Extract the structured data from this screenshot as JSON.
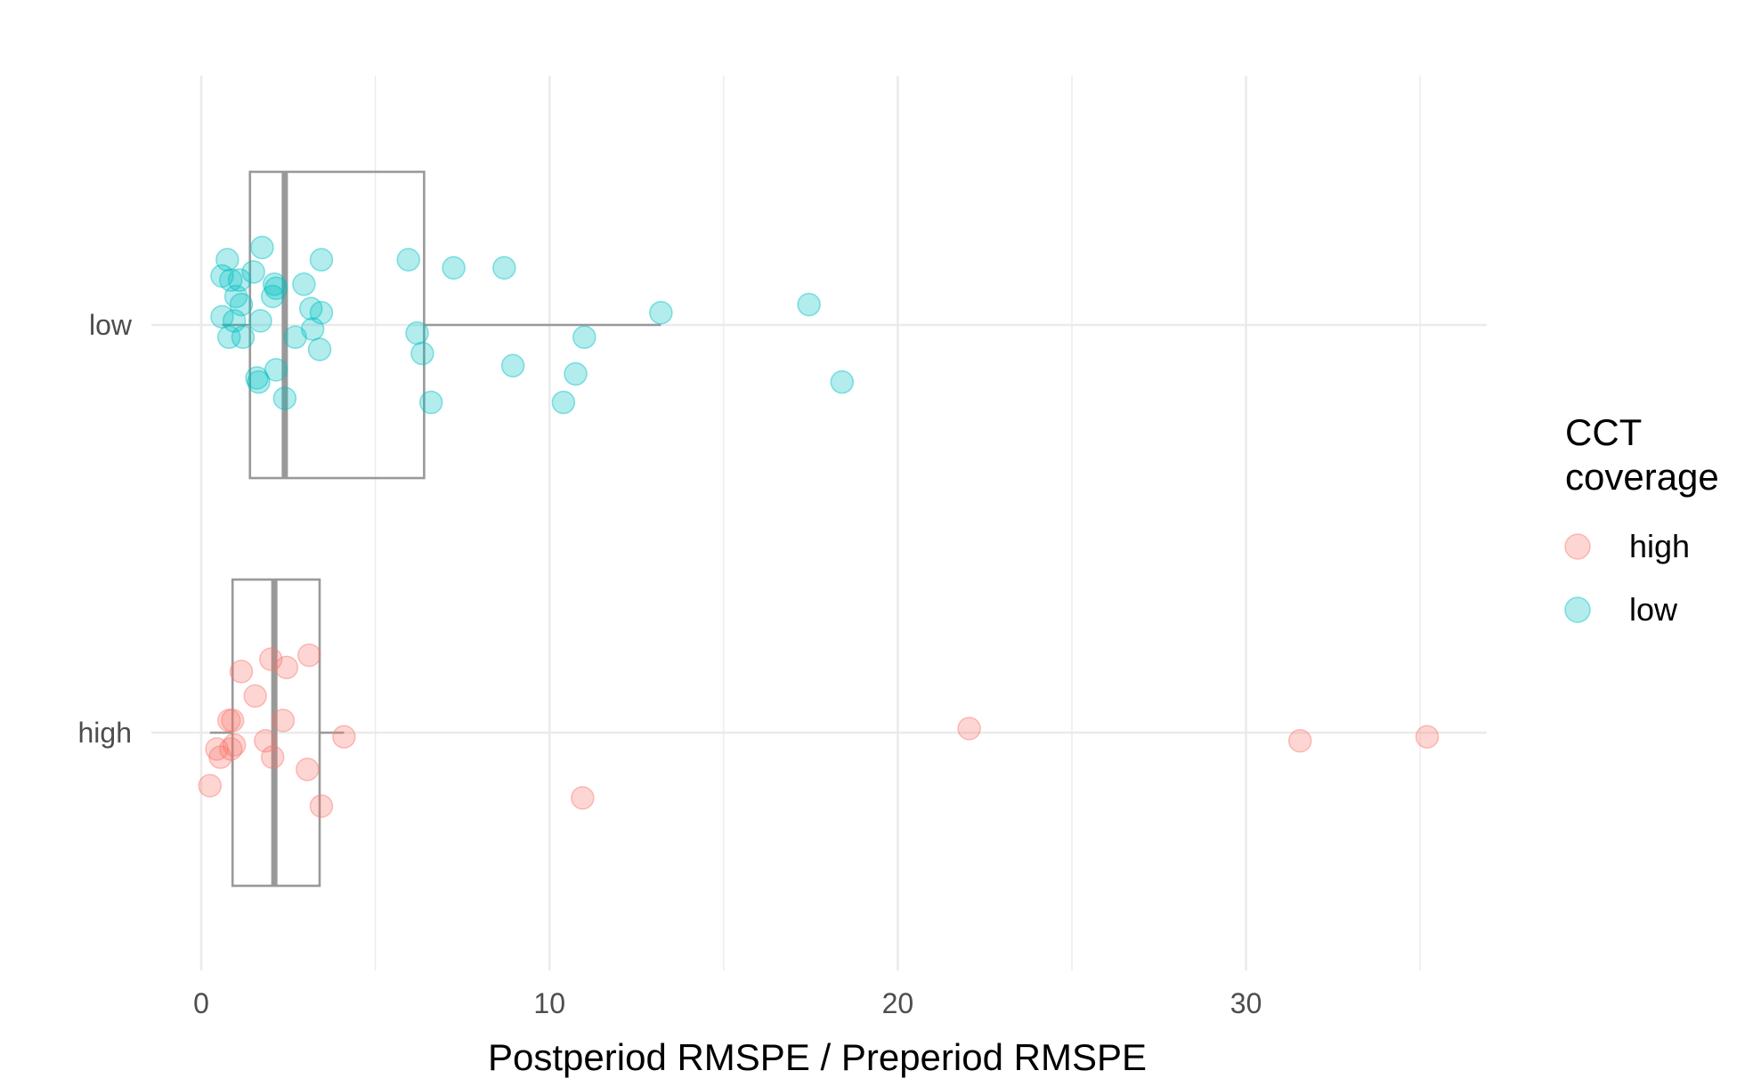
{
  "chart_data": {
    "type": "scatter",
    "subtype": "horizontal-boxplot-with-jitter",
    "title": "",
    "xlabel": "Postperiod  RMSPE  / Preperiod RMSPE",
    "ylabel": "",
    "xlim": [
      -0.5,
      37
    ],
    "x_ticks": [
      0,
      10,
      20,
      30
    ],
    "x_tick_labels": [
      "0",
      "10",
      "20",
      "30"
    ],
    "categories": [
      "high",
      "low"
    ],
    "grid": true,
    "legend": {
      "title_lines": [
        "CCT",
        "coverage"
      ],
      "position": "right"
    },
    "colors": {
      "high": "#F8766D",
      "low": "#00BFC4",
      "box": "#999999",
      "grid": "#ebebeb"
    },
    "boxes": [
      {
        "group": "low",
        "whisker_low": 0.6,
        "q1": 1.4,
        "median": 2.4,
        "q3": 6.4,
        "whisker_high": 13.2
      },
      {
        "group": "high",
        "whisker_low": 0.25,
        "q1": 0.9,
        "median": 2.1,
        "q3": 3.4,
        "whisker_high": 4.1
      }
    ],
    "series": [
      {
        "name": "low",
        "points": [
          {
            "x": 0.75,
            "y_offset": 0.16
          },
          {
            "x": 0.6,
            "y_offset": 0.12
          },
          {
            "x": 0.85,
            "y_offset": 0.11
          },
          {
            "x": 1.1,
            "y_offset": 0.11
          },
          {
            "x": 1.5,
            "y_offset": 0.13
          },
          {
            "x": 1.75,
            "y_offset": 0.19
          },
          {
            "x": 2.1,
            "y_offset": 0.1
          },
          {
            "x": 2.15,
            "y_offset": 0.09
          },
          {
            "x": 2.05,
            "y_offset": 0.07
          },
          {
            "x": 1.0,
            "y_offset": 0.07
          },
          {
            "x": 1.15,
            "y_offset": 0.05
          },
          {
            "x": 0.6,
            "y_offset": 0.02
          },
          {
            "x": 0.95,
            "y_offset": 0.01
          },
          {
            "x": 1.7,
            "y_offset": 0.01
          },
          {
            "x": 0.8,
            "y_offset": -0.03
          },
          {
            "x": 1.2,
            "y_offset": -0.03
          },
          {
            "x": 2.95,
            "y_offset": 0.1
          },
          {
            "x": 3.15,
            "y_offset": 0.04
          },
          {
            "x": 3.45,
            "y_offset": 0.03
          },
          {
            "x": 3.2,
            "y_offset": -0.01
          },
          {
            "x": 2.7,
            "y_offset": -0.03
          },
          {
            "x": 3.4,
            "y_offset": -0.06
          },
          {
            "x": 3.45,
            "y_offset": 0.16
          },
          {
            "x": 2.15,
            "y_offset": -0.11
          },
          {
            "x": 1.6,
            "y_offset": -0.13
          },
          {
            "x": 1.65,
            "y_offset": -0.14
          },
          {
            "x": 2.4,
            "y_offset": -0.18
          },
          {
            "x": 5.95,
            "y_offset": 0.16
          },
          {
            "x": 7.25,
            "y_offset": 0.14
          },
          {
            "x": 8.7,
            "y_offset": 0.14
          },
          {
            "x": 13.2,
            "y_offset": 0.03
          },
          {
            "x": 17.45,
            "y_offset": 0.05
          },
          {
            "x": 6.2,
            "y_offset": -0.02
          },
          {
            "x": 6.35,
            "y_offset": -0.07
          },
          {
            "x": 11.0,
            "y_offset": -0.03
          },
          {
            "x": 8.95,
            "y_offset": -0.1
          },
          {
            "x": 10.75,
            "y_offset": -0.12
          },
          {
            "x": 18.4,
            "y_offset": -0.14
          },
          {
            "x": 6.6,
            "y_offset": -0.19
          },
          {
            "x": 10.4,
            "y_offset": -0.19
          }
        ]
      },
      {
        "name": "high",
        "points": [
          {
            "x": 3.1,
            "y_offset": 0.19
          },
          {
            "x": 2.0,
            "y_offset": 0.18
          },
          {
            "x": 2.45,
            "y_offset": 0.16
          },
          {
            "x": 1.15,
            "y_offset": 0.15
          },
          {
            "x": 1.55,
            "y_offset": 0.09
          },
          {
            "x": 0.8,
            "y_offset": 0.03
          },
          {
            "x": 0.9,
            "y_offset": 0.03
          },
          {
            "x": 2.35,
            "y_offset": 0.03
          },
          {
            "x": 4.1,
            "y_offset": -0.01
          },
          {
            "x": 1.85,
            "y_offset": -0.02
          },
          {
            "x": 0.95,
            "y_offset": -0.03
          },
          {
            "x": 0.85,
            "y_offset": -0.04
          },
          {
            "x": 0.45,
            "y_offset": -0.04
          },
          {
            "x": 0.55,
            "y_offset": -0.06
          },
          {
            "x": 2.05,
            "y_offset": -0.06
          },
          {
            "x": 3.05,
            "y_offset": -0.09
          },
          {
            "x": 0.25,
            "y_offset": -0.13
          },
          {
            "x": 3.45,
            "y_offset": -0.18
          },
          {
            "x": 10.95,
            "y_offset": -0.16
          },
          {
            "x": 22.05,
            "y_offset": 0.01
          },
          {
            "x": 31.55,
            "y_offset": -0.02
          },
          {
            "x": 35.2,
            "y_offset": -0.01
          }
        ]
      }
    ]
  }
}
